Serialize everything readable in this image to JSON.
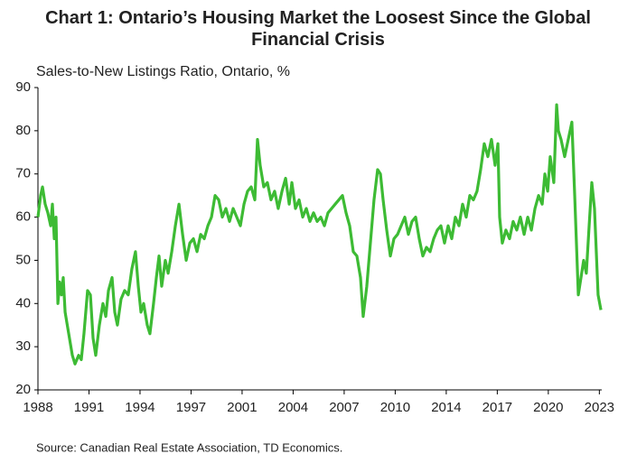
{
  "chart_data": {
    "type": "line",
    "title": "Chart 1: Ontario’s Housing Market the Loosest Since the Global Financial Crisis",
    "subtitle": "Sales-to-New Listings Ratio, Ontario, %",
    "source": "Source: Canadian Real Estate Association, TD Economics.",
    "xlim": [
      1988,
      2023.9
    ],
    "ylim": [
      20,
      90
    ],
    "yticks": [
      20,
      30,
      40,
      50,
      60,
      70,
      80,
      90
    ],
    "xticks": [
      {
        "value": 1988,
        "label": "1988"
      },
      {
        "value": 1991.25,
        "label": "1991"
      },
      {
        "value": 1994.5,
        "label": "1994"
      },
      {
        "value": 1997.75,
        "label": "1997"
      },
      {
        "value": 2001,
        "label": "2001"
      },
      {
        "value": 2004.25,
        "label": "2004"
      },
      {
        "value": 2007.5,
        "label": "2007"
      },
      {
        "value": 2010.75,
        "label": "2010"
      },
      {
        "value": 2014,
        "label": "2014"
      },
      {
        "value": 2017.25,
        "label": "2017"
      },
      {
        "value": 2020.5,
        "label": "2020"
      },
      {
        "value": 2023.75,
        "label": "2023"
      }
    ],
    "grid": false,
    "x": [
      1988.0,
      1988.17,
      1988.29,
      1988.46,
      1988.63,
      1988.81,
      1988.92,
      1989.04,
      1989.15,
      1989.27,
      1989.38,
      1989.5,
      1989.61,
      1989.73,
      1989.96,
      1990.19,
      1990.36,
      1990.59,
      1990.76,
      1990.93,
      1991.16,
      1991.34,
      1991.51,
      1991.68,
      1991.91,
      1992.14,
      1992.32,
      1992.49,
      1992.72,
      1992.89,
      1993.06,
      1993.29,
      1993.52,
      1993.75,
      1993.98,
      1994.21,
      1994.39,
      1994.56,
      1994.73,
      1994.96,
      1995.13,
      1995.36,
      1995.54,
      1995.71,
      1995.88,
      1996.11,
      1996.29,
      1996.52,
      1996.75,
      1996.98,
      1997.21,
      1997.44,
      1997.67,
      1997.9,
      1998.13,
      1998.36,
      1998.59,
      1998.82,
      1999.05,
      1999.28,
      1999.51,
      1999.74,
      1999.97,
      2000.2,
      2000.43,
      2000.66,
      2000.89,
      2001.12,
      2001.35,
      2001.58,
      2001.81,
      2001.98,
      2002.15,
      2002.38,
      2002.61,
      2002.84,
      2003.07,
      2003.3,
      2003.54,
      2003.77,
      2004.0,
      2004.17,
      2004.4,
      2004.63,
      2004.86,
      2005.09,
      2005.32,
      2005.55,
      2005.78,
      2006.01,
      2006.24,
      2006.47,
      2006.7,
      2006.93,
      2007.16,
      2007.39,
      2007.62,
      2007.85,
      2008.08,
      2008.31,
      2008.54,
      2008.71,
      2008.94,
      2009.17,
      2009.4,
      2009.63,
      2009.81,
      2009.98,
      2010.21,
      2010.44,
      2010.67,
      2010.9,
      2011.13,
      2011.36,
      2011.59,
      2011.82,
      2012.05,
      2012.28,
      2012.51,
      2012.74,
      2012.97,
      2013.2,
      2013.43,
      2013.66,
      2013.89,
      2014.12,
      2014.35,
      2014.58,
      2014.81,
      2015.04,
      2015.27,
      2015.5,
      2015.73,
      2015.96,
      2016.19,
      2016.42,
      2016.65,
      2016.88,
      2017.11,
      2017.29,
      2017.4,
      2017.57,
      2017.8,
      2018.03,
      2018.26,
      2018.49,
      2018.72,
      2018.96,
      2019.19,
      2019.42,
      2019.65,
      2019.88,
      2020.11,
      2020.28,
      2020.46,
      2020.62,
      2020.85,
      2021.03,
      2021.14,
      2021.31,
      2021.54,
      2021.77,
      2022.0,
      2022.18,
      2022.41,
      2022.58,
      2022.75,
      2022.92,
      2023.1,
      2023.27,
      2023.44,
      2023.67,
      2023.85
    ],
    "series": [
      {
        "color": "#3dbb34",
        "values": [
          60,
          65,
          67,
          63,
          61,
          58,
          63,
          55,
          60,
          40,
          45,
          42,
          46,
          38,
          33,
          28,
          26,
          28,
          27,
          33,
          43,
          42,
          32,
          28,
          35,
          40,
          37,
          43,
          46,
          38,
          35,
          41,
          43,
          42,
          48,
          52,
          44,
          38,
          40,
          35,
          33,
          40,
          46,
          51,
          44,
          50,
          47,
          52,
          58,
          63,
          56,
          50,
          54,
          55,
          52,
          56,
          55,
          58,
          60,
          65,
          64,
          60,
          62,
          59,
          62,
          60,
          58,
          63,
          66,
          67,
          64,
          78,
          72,
          67,
          68,
          64,
          66,
          62,
          66,
          69,
          63,
          68,
          62,
          64,
          60,
          62,
          59,
          61,
          59,
          60,
          58,
          61,
          62,
          63,
          64,
          65,
          61,
          58,
          52,
          51,
          46,
          37,
          44,
          54,
          64,
          71,
          70,
          64,
          57,
          51,
          55,
          56,
          58,
          60,
          56,
          59,
          60,
          55,
          51,
          53,
          52,
          55,
          57,
          58,
          54,
          58,
          55,
          60,
          58,
          63,
          60,
          65,
          64,
          66,
          71,
          77,
          74,
          78,
          72,
          77,
          60,
          54,
          57,
          55,
          59,
          57,
          60,
          56,
          60,
          57,
          62,
          65,
          63,
          70,
          66,
          74,
          68,
          86,
          80,
          78,
          74,
          78,
          82,
          65,
          42,
          46,
          50,
          47,
          58,
          68,
          62,
          42,
          38.5
        ]
      }
    ]
  }
}
